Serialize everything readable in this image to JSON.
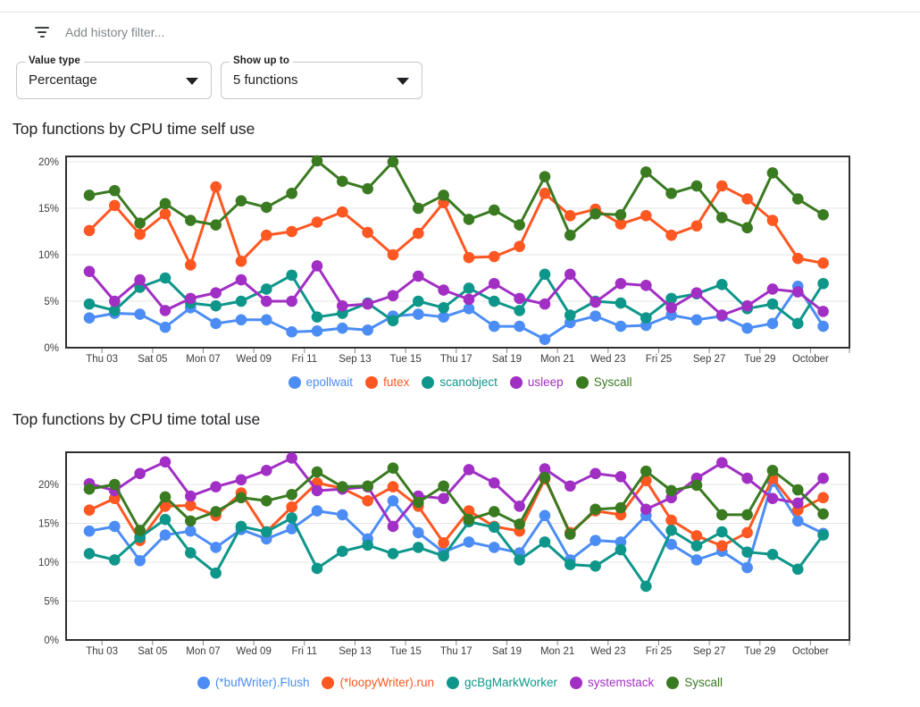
{
  "filter_bar": {
    "icon": "filter-list-icon",
    "placeholder": "Add history filter..."
  },
  "controls": [
    {
      "label": "Value type",
      "value": "Percentage"
    },
    {
      "label": "Show up to",
      "value": "5 functions"
    }
  ],
  "chart_data": [
    {
      "type": "line",
      "title": "Top functions by CPU time self use",
      "xlabel": "",
      "ylabel": "",
      "ylim": [
        0,
        20.6
      ],
      "grid": true,
      "legend_position": "bottom",
      "y_tick_labels": [
        "0%",
        "5%",
        "10%",
        "15%",
        "20%"
      ],
      "x_tick_labels": [
        "Thu 03",
        "Sat 05",
        "Mon 07",
        "Wed 09",
        "Fri 11",
        "Sep 13",
        "Tue 15",
        "Thu 17",
        "Sat 19",
        "Mon 21",
        "Wed 23",
        "Fri 25",
        "Sep 27",
        "Tue 29",
        "October"
      ],
      "series": [
        {
          "name": "epollwait",
          "color": "#4c8df5",
          "values": [
            3.2,
            3.7,
            3.6,
            2.2,
            4.3,
            2.6,
            3.0,
            3.0,
            1.7,
            1.8,
            2.1,
            1.9,
            3.4,
            3.6,
            3.3,
            4.2,
            2.3,
            2.3,
            0.9,
            2.7,
            3.4,
            2.3,
            2.4,
            3.5,
            3.0,
            3.4,
            2.1,
            2.6,
            6.6,
            2.3
          ]
        },
        {
          "name": "futex",
          "color": "#ff5722",
          "values": [
            12.6,
            15.3,
            12.2,
            14.4,
            8.9,
            17.3,
            9.3,
            12.1,
            12.5,
            13.5,
            14.6,
            12.4,
            10.0,
            12.3,
            15.6,
            9.7,
            9.8,
            10.9,
            16.6,
            14.2,
            14.9,
            13.3,
            14.2,
            12.1,
            13.1,
            17.4,
            16.0,
            13.7,
            9.6,
            9.1
          ]
        },
        {
          "name": "scanobject",
          "color": "#0e968a",
          "values": [
            4.7,
            4.0,
            6.5,
            7.5,
            4.8,
            4.5,
            5.0,
            6.3,
            7.8,
            3.3,
            3.7,
            4.8,
            2.9,
            5.0,
            4.3,
            6.4,
            5.0,
            4.0,
            7.9,
            3.5,
            5.0,
            4.8,
            3.2,
            5.3,
            5.8,
            6.8,
            4.2,
            4.7,
            2.6,
            6.9
          ]
        },
        {
          "name": "usleep",
          "color": "#a12fc4",
          "values": [
            8.2,
            5.0,
            7.3,
            4.0,
            5.3,
            5.9,
            7.3,
            5.0,
            5.0,
            8.8,
            4.5,
            4.7,
            5.6,
            7.7,
            6.2,
            5.2,
            6.9,
            5.3,
            4.7,
            7.9,
            4.9,
            6.9,
            6.7,
            4.3,
            5.9,
            3.5,
            4.5,
            6.3,
            6.0,
            3.9
          ]
        },
        {
          "name": "Syscall",
          "color": "#3a7a21",
          "values": [
            16.4,
            16.9,
            13.4,
            15.5,
            13.7,
            13.2,
            15.8,
            15.1,
            16.6,
            20.1,
            17.9,
            17.1,
            20.0,
            15.0,
            16.4,
            13.8,
            14.8,
            13.2,
            18.4,
            12.1,
            14.4,
            14.3,
            18.9,
            16.6,
            17.4,
            14.0,
            12.9,
            18.8,
            16.0,
            14.3
          ]
        }
      ]
    },
    {
      "type": "line",
      "title": "Top functions by CPU time total use",
      "xlabel": "",
      "ylabel": "",
      "ylim": [
        0,
        24.1
      ],
      "grid": true,
      "legend_position": "bottom",
      "y_tick_labels": [
        "0%",
        "5%",
        "10%",
        "15%",
        "20%"
      ],
      "x_tick_labels": [
        "Thu 03",
        "Sat 05",
        "Mon 07",
        "Wed 09",
        "Fri 11",
        "Sep 13",
        "Tue 15",
        "Thu 17",
        "Sat 19",
        "Mon 21",
        "Wed 23",
        "Fri 25",
        "Sep 27",
        "Tue 29",
        "October"
      ],
      "series": [
        {
          "name": "(*bufWriter).Flush",
          "color": "#4c8df5",
          "values": [
            14.0,
            14.6,
            10.2,
            13.5,
            14.0,
            11.9,
            14.2,
            13.0,
            14.3,
            16.6,
            16.1,
            13.0,
            17.9,
            13.8,
            11.3,
            12.6,
            11.9,
            11.2,
            16.0,
            10.3,
            12.8,
            12.6,
            16.0,
            12.3,
            10.3,
            11.4,
            9.3,
            20.4,
            15.3,
            13.7
          ]
        },
        {
          "name": "(*loopyWriter).run",
          "color": "#ff5722",
          "values": [
            16.7,
            18.2,
            12.8,
            17.2,
            17.3,
            16.0,
            18.9,
            13.9,
            17.1,
            20.2,
            19.5,
            17.9,
            19.7,
            17.2,
            12.5,
            16.6,
            14.6,
            14.0,
            20.7,
            13.8,
            16.6,
            16.1,
            20.5,
            15.4,
            13.4,
            12.1,
            13.8,
            20.8,
            16.7,
            18.3
          ]
        },
        {
          "name": "gcBgMarkWorker",
          "color": "#0e968a",
          "values": [
            11.1,
            10.3,
            13.2,
            15.5,
            11.2,
            8.6,
            14.6,
            13.9,
            15.7,
            9.2,
            11.4,
            12.2,
            11.1,
            11.9,
            10.8,
            15.2,
            14.5,
            10.3,
            12.6,
            9.7,
            9.5,
            11.6,
            6.9,
            14.1,
            12.1,
            13.9,
            11.3,
            11.0,
            9.1,
            13.5
          ]
        },
        {
          "name": "systemstack",
          "color": "#a12fc4",
          "values": [
            20.1,
            19.2,
            21.4,
            22.9,
            18.5,
            19.7,
            20.6,
            21.8,
            23.4,
            19.2,
            19.4,
            19.7,
            14.6,
            18.5,
            18.2,
            21.9,
            20.2,
            17.2,
            22.0,
            19.8,
            21.4,
            21.0,
            16.8,
            18.3,
            20.8,
            22.8,
            20.8,
            18.2,
            17.6,
            20.8
          ]
        },
        {
          "name": "Syscall",
          "color": "#3a7a21",
          "values": [
            19.4,
            20.0,
            14.1,
            18.4,
            15.3,
            16.5,
            18.3,
            17.9,
            18.7,
            21.6,
            19.7,
            19.8,
            22.1,
            17.7,
            19.8,
            15.5,
            16.5,
            14.9,
            20.9,
            13.6,
            16.8,
            17.0,
            21.7,
            19.2,
            19.9,
            16.1,
            16.1,
            21.8,
            19.3,
            16.2
          ]
        }
      ]
    }
  ]
}
